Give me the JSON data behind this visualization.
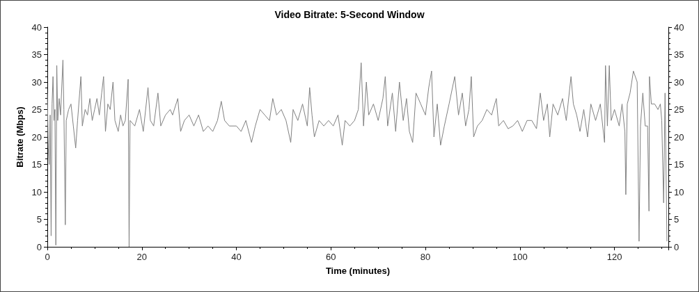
{
  "chart_data": {
    "type": "line",
    "title": "Video Bitrate: 5-Second Window",
    "xlabel": "Time (minutes)",
    "ylabel": "Bitrate (Mbps)",
    "xlim": [
      0,
      131.4
    ],
    "xticks": [
      0,
      20,
      40,
      60,
      80,
      100,
      120
    ],
    "ylim": [
      0,
      40
    ],
    "yticks": [
      0,
      5,
      10,
      15,
      20,
      25,
      30,
      35,
      40
    ],
    "y2lim": [
      0,
      40
    ],
    "y2ticks": [
      0,
      5,
      10,
      15,
      20,
      25,
      30,
      35,
      40
    ],
    "grid": false,
    "marker": "none",
    "line_style": "solid",
    "x": [
      0,
      0.2,
      0.4,
      0.6,
      0.8,
      1.0,
      1.2,
      1.4,
      1.6,
      1.8,
      2.0,
      2.2,
      2.5,
      2.8,
      3.1,
      3.3,
      3.5,
      3.8,
      4.0,
      4.5,
      5,
      5.5,
      6,
      6.4,
      7.1,
      7.4,
      8,
      8.5,
      9,
      9.5,
      10,
      10.5,
      11,
      11.5,
      11.9,
      12.3,
      12.8,
      13.3,
      13.9,
      14.3,
      15,
      15.5,
      16,
      16.5,
      17.1,
      17.3,
      17.5,
      18.5,
      19.5,
      20.3,
      21.3,
      21.8,
      22.5,
      23.4,
      24,
      25,
      26,
      26.5,
      27.6,
      28.2,
      29,
      30,
      31,
      32,
      33,
      34,
      35,
      36,
      36.8,
      37.5,
      38.5,
      40,
      41,
      42,
      43.2,
      44,
      45,
      46,
      47,
      47.7,
      48.5,
      49.5,
      50.5,
      51.5,
      52,
      53,
      54,
      55,
      55.5,
      56,
      56.5,
      57.5,
      58.5,
      59.5,
      60.5,
      61.5,
      62.4,
      63,
      64,
      65,
      65.8,
      66.4,
      66.9,
      67.5,
      68,
      69,
      70,
      71,
      71.5,
      72,
      73,
      73.7,
      74.5,
      75.3,
      76,
      76.6,
      77.3,
      78,
      79,
      80,
      80.7,
      81.3,
      81.8,
      82.5,
      83.2,
      84,
      85,
      86.2,
      87,
      87.8,
      88.5,
      89.2,
      89.7,
      90.2,
      91,
      92,
      93,
      94,
      95,
      95.5,
      96.5,
      97.5,
      98.5,
      99.5,
      100.5,
      101.5,
      102.5,
      103.5,
      104.3,
      105,
      105.8,
      106.3,
      107,
      108,
      109,
      109.8,
      110.8,
      111.3,
      112,
      112.7,
      113.5,
      114.3,
      115,
      116,
      117,
      117.9,
      118.1,
      118.5,
      118.9,
      119.3,
      120,
      121,
      121.6,
      122.2,
      122.4,
      122.7,
      123.3,
      124,
      124.8,
      125.2,
      125.5,
      126,
      126.5,
      127,
      127.3,
      127.4,
      127.8,
      128.5,
      129.2,
      129.7,
      130,
      130.4,
      130.7,
      131.1
    ],
    "series": [
      {
        "color": "#808080",
        "values": [
          28,
          18,
          15,
          24,
          2,
          26,
          31,
          23,
          25,
          0.3,
          33,
          23,
          27,
          24,
          30,
          34,
          25,
          4,
          23,
          25,
          26,
          22,
          18,
          23,
          31,
          22,
          25,
          24,
          27,
          23,
          25,
          27,
          24,
          28,
          31,
          21,
          26,
          25,
          30,
          23,
          21,
          24,
          22,
          23,
          30.5,
          0,
          23,
          22,
          25,
          21,
          29,
          23,
          22,
          28,
          22,
          24,
          25,
          24,
          27,
          21,
          23,
          24,
          22,
          24,
          21,
          22,
          21,
          23,
          26.5,
          23,
          22,
          22,
          21,
          23,
          19,
          22,
          25,
          24,
          23,
          27,
          24,
          25,
          23,
          19,
          25,
          23,
          26,
          22,
          29,
          24,
          20,
          23,
          22,
          23,
          22,
          24,
          18.5,
          23,
          22,
          23,
          25,
          33.5,
          22,
          30,
          24,
          26,
          23,
          27,
          31,
          22,
          28,
          21,
          30,
          23,
          27,
          21,
          19,
          28,
          26,
          24,
          29,
          32,
          20,
          26,
          18.5,
          22,
          26,
          31,
          24,
          28,
          22,
          25,
          31,
          20,
          22,
          23,
          25,
          24,
          27,
          22,
          23,
          21.5,
          22,
          23,
          21,
          23,
          23,
          21.5,
          28,
          23,
          26,
          20,
          26,
          24,
          27,
          23,
          31,
          26,
          24,
          21,
          25,
          20,
          26,
          23,
          26,
          19,
          33,
          22,
          33,
          23,
          25,
          22,
          26,
          21,
          9.5,
          26,
          28,
          32,
          30,
          1,
          22,
          28,
          22,
          22,
          6.5,
          31,
          26,
          26,
          25,
          26,
          23,
          8,
          28,
          1
        ]
      }
    ]
  }
}
